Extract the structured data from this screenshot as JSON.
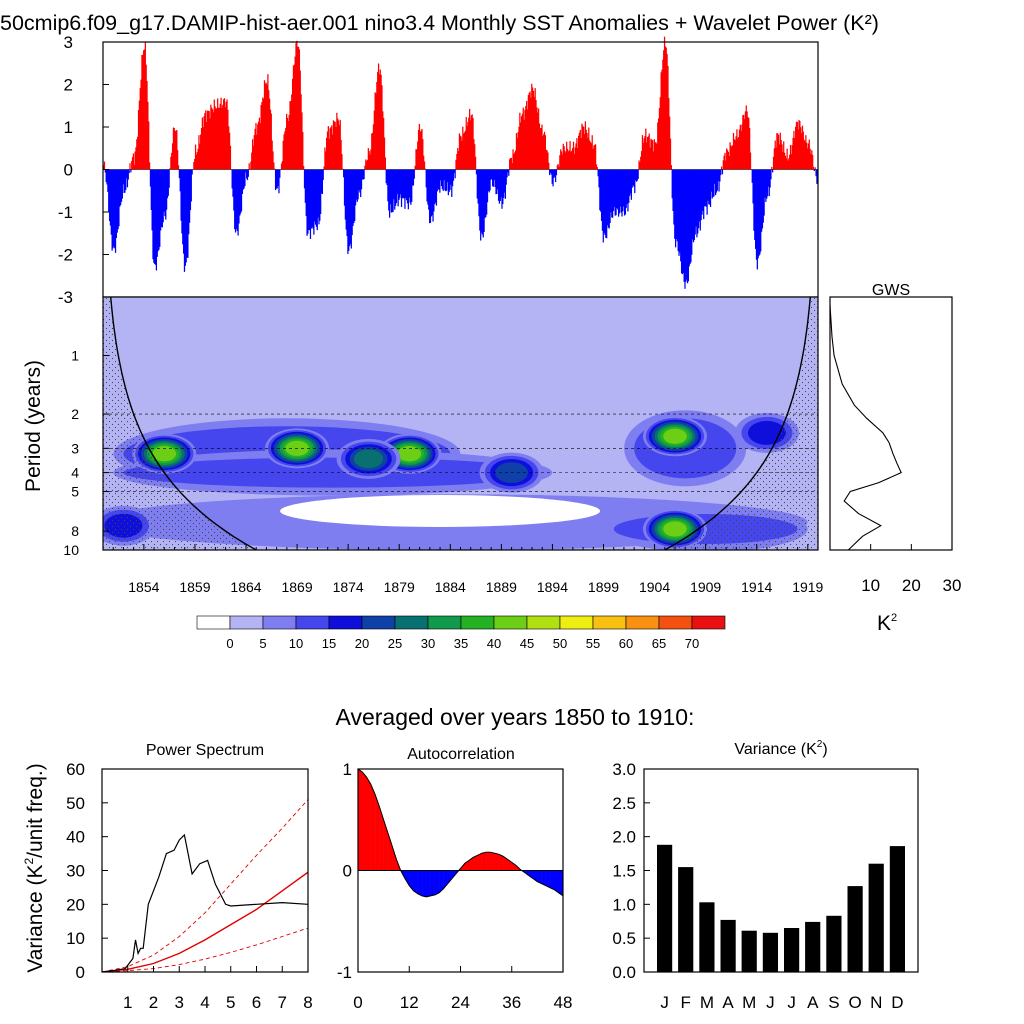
{
  "title": "50cmip6.f09_g17.DAMIP-hist-aer.001 nino3.4 Monthly SST Anomalies + Wavelet Power (K²)",
  "anomaly_panel": {
    "yticks": [
      "3",
      "2",
      "1",
      "0",
      "-1",
      "-2",
      "-3"
    ]
  },
  "wavelet_panel": {
    "ylabel": "Period (years)",
    "yticks": [
      "1",
      "2",
      "3",
      "4",
      "5",
      "8",
      "10"
    ],
    "xticks": [
      "1854",
      "1859",
      "1864",
      "1869",
      "1874",
      "1879",
      "1884",
      "1889",
      "1894",
      "1899",
      "1904",
      "1909",
      "1914",
      "1919"
    ]
  },
  "gws_panel": {
    "title": "GWS",
    "xticks": [
      "10",
      "20",
      "30"
    ],
    "xlabel": "K",
    "xlabel_sup": "2"
  },
  "colorbar": {
    "labels": [
      "0",
      "5",
      "10",
      "15",
      "20",
      "25",
      "30",
      "35",
      "40",
      "45",
      "50",
      "55",
      "60",
      "65",
      "70"
    ],
    "colors": [
      "#ffffff",
      "#b4b4f5",
      "#7e7ef0",
      "#4646ee",
      "#0f0fdc",
      "#0f3fa8",
      "#087070",
      "#129a4c",
      "#24b224",
      "#6ccf16",
      "#b0e010",
      "#eeee10",
      "#f8c010",
      "#f89010",
      "#f45010",
      "#e81010"
    ]
  },
  "averaged_title": "Averaged over years 1850 to 1910:",
  "spectrum_panel": {
    "title": "Power Spectrum",
    "ylabel": "Variance (K",
    "ylabel_sup": "2",
    "ylabel_end": "/unit freq.)",
    "yticks": [
      "0",
      "10",
      "20",
      "30",
      "40",
      "50",
      "60"
    ],
    "xticks": [
      "1",
      "2",
      "3",
      "4",
      "5",
      "6",
      "7",
      "8"
    ]
  },
  "autocorr_panel": {
    "title": "Autocorrelation",
    "yticks": [
      "1",
      "0",
      "-1"
    ],
    "xticks": [
      "0",
      "12",
      "24",
      "36",
      "48"
    ]
  },
  "variance_panel": {
    "title": "Variance (K",
    "title_sup": "2",
    "title_end": ")",
    "yticks": [
      "3.0",
      "2.5",
      "2.0",
      "1.5",
      "1.0",
      "0.5",
      "0.0"
    ],
    "xticks": [
      "J",
      "F",
      "M",
      "A",
      "M",
      "J",
      "J",
      "A",
      "S",
      "O",
      "N",
      "D"
    ]
  },
  "chart_data": [
    {
      "type": "area",
      "name_ref": "monthly_sst_anomaly",
      "xlim": [
        1850,
        1920
      ],
      "ylim": [
        -3,
        3
      ],
      "x": [
        1850,
        1851,
        1852,
        1853,
        1854,
        1855,
        1856,
        1857,
        1858,
        1859,
        1860,
        1861,
        1862,
        1863,
        1864,
        1865,
        1866,
        1867,
        1868,
        1869,
        1870,
        1871,
        1872,
        1873,
        1874,
        1875,
        1876,
        1877,
        1878,
        1879,
        1880,
        1881,
        1882,
        1883,
        1884,
        1885,
        1886,
        1887,
        1888,
        1889,
        1890,
        1891,
        1892,
        1893,
        1894,
        1895,
        1896,
        1897,
        1898,
        1899,
        1900,
        1901,
        1902,
        1903,
        1904,
        1905,
        1906,
        1907,
        1908,
        1909,
        1910,
        1911,
        1912,
        1913,
        1914,
        1915,
        1916,
        1917,
        1918,
        1919,
        1920
      ],
      "y": [
        0.1,
        -1.9,
        -0.5,
        0.3,
        2.9,
        -2.3,
        -1.1,
        1.0,
        -2.3,
        0.4,
        1.3,
        1.5,
        1.6,
        -1.5,
        -0.2,
        1.0,
        2.1,
        -0.5,
        1.2,
        3.0,
        -1.5,
        -1.3,
        0.9,
        1.2,
        -1.9,
        -0.6,
        0.4,
        2.4,
        -1.0,
        -0.7,
        -0.8,
        1.0,
        -1.2,
        -0.4,
        -0.5,
        0.8,
        1.3,
        -1.6,
        -0.3,
        -0.8,
        0.3,
        1.3,
        1.9,
        0.9,
        -0.3,
        0.5,
        0.5,
        1.0,
        0.6,
        -1.6,
        -1.0,
        -1.0,
        -0.4,
        0.8,
        0.6,
        3.0,
        -1.7,
        -2.7,
        -1.5,
        -0.9,
        -0.5,
        0.4,
        0.8,
        1.4,
        -2.2,
        -0.6,
        0.8,
        0.3,
        1.1,
        0.6,
        -0.3
      ]
    },
    {
      "type": "heatmap",
      "name_ref": "wavelet_power",
      "x_range": [
        1850,
        1920
      ],
      "period_range_years": [
        0.5,
        10
      ],
      "levels": [
        0,
        5,
        10,
        15,
        20,
        25,
        30,
        35,
        40,
        45,
        50,
        55,
        60,
        65,
        70
      ],
      "blobs": [
        {
          "year": 1856,
          "period": 3.2,
          "value": 40
        },
        {
          "year": 1869,
          "period": 3.0,
          "value": 40
        },
        {
          "year": 1880,
          "period": 3.2,
          "value": 40
        },
        {
          "year": 1876,
          "period": 3.4,
          "value": 25
        },
        {
          "year": 1890,
          "period": 4.0,
          "value": 20
        },
        {
          "year": 1906,
          "period": 2.6,
          "value": 40
        },
        {
          "year": 1906,
          "period": 7.8,
          "value": 40
        },
        {
          "year": 1915,
          "period": 2.5,
          "value": 15
        },
        {
          "year": 1852,
          "period": 7.5,
          "value": 15
        }
      ]
    },
    {
      "type": "line",
      "name_ref": "global_wavelet_spectrum",
      "xlim": [
        0,
        30
      ],
      "period": [
        0.8,
        1.0,
        1.4,
        1.8,
        2.1,
        2.5,
        2.8,
        3.2,
        3.6,
        4.0,
        4.5,
        5.0,
        5.6,
        6.5,
        7.5,
        8.5,
        10
      ],
      "power": [
        0.5,
        1.0,
        3.0,
        6.0,
        9.0,
        13.0,
        14.5,
        15.5,
        16.5,
        17.5,
        12.0,
        5.0,
        3.5,
        7.0,
        12.5,
        8.0,
        4.5
      ]
    },
    {
      "type": "line",
      "name_ref": "power_spectrum",
      "xlim": [
        0,
        8
      ],
      "ylim": [
        0,
        60
      ],
      "x": [
        0,
        0.5,
        0.9,
        1.1,
        1.2,
        1.3,
        1.4,
        1.5,
        1.6,
        1.8,
        2.0,
        2.2,
        2.5,
        2.8,
        3.0,
        3.2,
        3.5,
        3.8,
        4.1,
        4.4,
        4.8,
        5.0,
        6.0,
        7.0,
        8.0
      ],
      "y": [
        0,
        0.5,
        1.0,
        3.0,
        4.0,
        9.5,
        5.5,
        7.0,
        7.0,
        20.0,
        24.0,
        28.0,
        35.0,
        36.0,
        39.0,
        40.5,
        29.0,
        32.0,
        33.0,
        26.0,
        20.0,
        19.5,
        20.0,
        20.5,
        20.0
      ],
      "red_noise": {
        "x": [
          0,
          1,
          2,
          3,
          4,
          5,
          6,
          7,
          8
        ],
        "mean": [
          0,
          0.8,
          2.5,
          5.5,
          9.5,
          14.0,
          18.5,
          24.0,
          29.5
        ],
        "lower": [
          0,
          0.4,
          1.0,
          2.2,
          3.8,
          5.8,
          8.0,
          10.5,
          13.0
        ],
        "upper": [
          0,
          1.6,
          5.0,
          10.5,
          17.5,
          26.0,
          34.5,
          42.5,
          51.0
        ]
      }
    },
    {
      "type": "area",
      "name_ref": "autocorrelation",
      "xlim": [
        0,
        48
      ],
      "ylim": [
        -1,
        1
      ],
      "x": [
        0,
        1,
        2,
        3,
        4,
        5,
        6,
        7,
        8,
        9,
        10,
        11,
        12,
        13,
        14,
        15,
        16,
        17,
        18,
        19,
        20,
        21,
        22,
        23,
        24,
        25,
        26,
        27,
        28,
        29,
        30,
        31,
        32,
        33,
        34,
        35,
        36,
        37,
        38,
        39,
        40,
        41,
        42,
        43,
        44,
        45,
        46,
        47,
        48
      ],
      "y": [
        1.0,
        0.97,
        0.92,
        0.85,
        0.75,
        0.63,
        0.5,
        0.37,
        0.24,
        0.11,
        0.0,
        -0.08,
        -0.15,
        -0.2,
        -0.23,
        -0.25,
        -0.26,
        -0.25,
        -0.24,
        -0.22,
        -0.18,
        -0.13,
        -0.08,
        -0.03,
        0.02,
        0.07,
        0.1,
        0.13,
        0.15,
        0.17,
        0.18,
        0.18,
        0.17,
        0.16,
        0.14,
        0.11,
        0.08,
        0.05,
        0.01,
        -0.02,
        -0.05,
        -0.08,
        -0.11,
        -0.13,
        -0.15,
        -0.17,
        -0.19,
        -0.22,
        -0.25
      ]
    },
    {
      "type": "bar",
      "name_ref": "monthly_variance",
      "categories": [
        "J",
        "F",
        "M",
        "A",
        "M",
        "J",
        "J",
        "A",
        "S",
        "O",
        "N",
        "D"
      ],
      "values": [
        1.88,
        1.55,
        1.03,
        0.77,
        0.61,
        0.58,
        0.65,
        0.74,
        0.83,
        1.27,
        1.6,
        1.86
      ],
      "ylim": [
        0,
        3
      ]
    }
  ]
}
